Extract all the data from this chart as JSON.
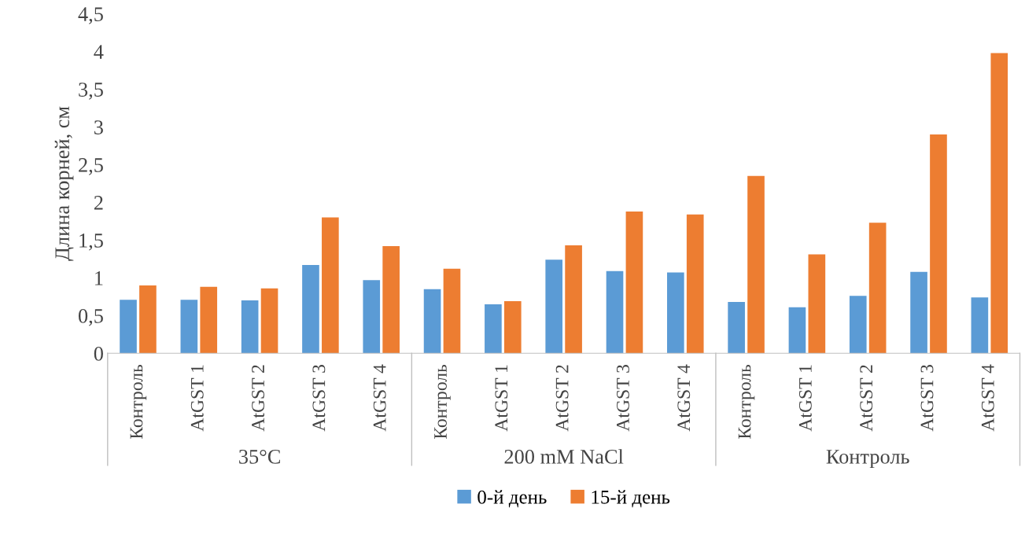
{
  "chart_data": {
    "type": "bar",
    "ylabel": "Длина корней, см",
    "categories": [
      "Контроль",
      "AtGST 1",
      "AtGST 2",
      "AtGST 3",
      "AtGST 4",
      "Контроль",
      "AtGST 1",
      "AtGST 2",
      "AtGST 3",
      "AtGST 4",
      "Контроль",
      "AtGST 1",
      "AtGST 2",
      "AtGST 3",
      "AtGST 4"
    ],
    "annotations": [
      "35°C",
      "200 mM NaCl",
      "Контроль"
    ],
    "series": [
      {
        "name": "0-й день",
        "color": "#5b9bd5",
        "values": [
          0.71,
          0.71,
          0.7,
          1.17,
          0.97,
          0.85,
          0.65,
          1.24,
          1.09,
          1.07,
          0.68,
          0.61,
          0.76,
          1.08,
          0.74
        ]
      },
      {
        "name": "15-й день",
        "color": "#ed7d31",
        "values": [
          0.9,
          0.88,
          0.86,
          1.8,
          1.42,
          1.12,
          0.69,
          1.43,
          1.88,
          1.84,
          2.35,
          1.31,
          1.73,
          2.9,
          3.98
        ]
      }
    ],
    "ylim": [
      0,
      4.5
    ],
    "yticks": [
      0,
      {
        "value": 0.5,
        "label": "0,5"
      },
      1,
      {
        "value": 1.5,
        "label": "1,5"
      },
      2,
      {
        "value": 2.5,
        "label": "2,5"
      },
      3,
      {
        "value": 3.5,
        "label": "3,5"
      },
      4,
      {
        "value": 4.5,
        "label": "4,5"
      }
    ],
    "grid": false,
    "legend": "bottom"
  }
}
